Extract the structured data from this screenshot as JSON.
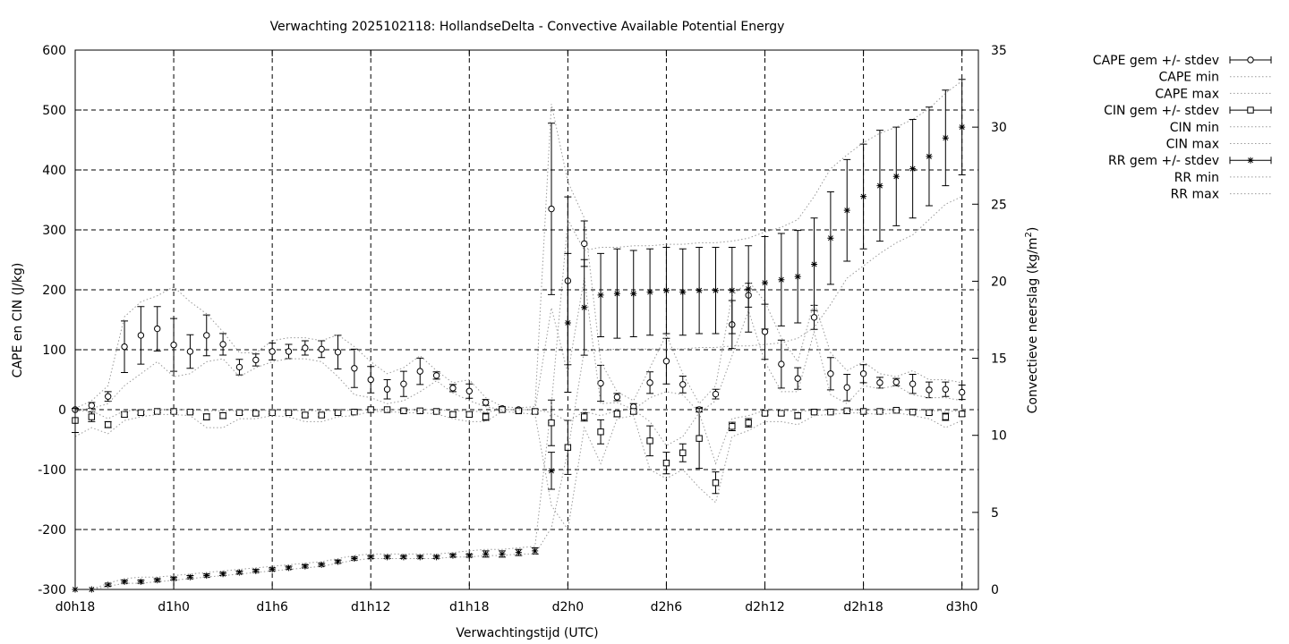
{
  "chart_data": {
    "type": "line",
    "title": "Verwachting 2025102118: HollandseDelta - Convective Available Potential Energy",
    "xlabel": "Verwachtingstijd (UTC)",
    "ylabel_left": "CAPE en CIN (J/kg)",
    "ylabel_right": "Convectieve neerslag (kg/m2)",
    "ylabel_right_prefix": "Convectieve neerslag (kg/m",
    "ylabel_right_sup": "2",
    "ylabel_right_suffix": ")",
    "xlim": [
      18,
      73
    ],
    "ylim_left": [
      -300,
      600
    ],
    "ylim_right": [
      0,
      35
    ],
    "grid": true,
    "legend_position": "top-right outside",
    "x_ticks": [
      {
        "x": 18,
        "label": "d0h18"
      },
      {
        "x": 24,
        "label": "d1h0"
      },
      {
        "x": 30,
        "label": "d1h6"
      },
      {
        "x": 36,
        "label": "d1h12"
      },
      {
        "x": 42,
        "label": "d1h18"
      },
      {
        "x": 48,
        "label": "d2h0"
      },
      {
        "x": 54,
        "label": "d2h6"
      },
      {
        "x": 60,
        "label": "d2h12"
      },
      {
        "x": 66,
        "label": "d2h18"
      },
      {
        "x": 72,
        "label": "d3h0"
      }
    ],
    "y_ticks_left": [
      -300,
      -200,
      -100,
      0,
      100,
      200,
      300,
      400,
      500,
      600
    ],
    "y_ticks_right": [
      0,
      5,
      10,
      15,
      20,
      25,
      30,
      35
    ],
    "x": [
      18,
      19,
      20,
      21,
      22,
      23,
      24,
      25,
      26,
      27,
      28,
      29,
      30,
      31,
      32,
      33,
      34,
      35,
      36,
      37,
      38,
      39,
      40,
      41,
      42,
      43,
      44,
      45,
      46,
      47,
      48,
      49,
      50,
      51,
      52,
      53,
      54,
      55,
      56,
      57,
      58,
      59,
      60,
      61,
      62,
      63,
      64,
      65,
      66,
      67,
      68,
      69,
      70,
      71,
      72
    ],
    "series": [
      {
        "name": "CAPE gem +/- stdev",
        "axis": "left",
        "marker": "circle",
        "style": "errorbars",
        "values": [
          0,
          7,
          22,
          105,
          124,
          135,
          108,
          97,
          124,
          109,
          71,
          83,
          97,
          97,
          103,
          101,
          96,
          69,
          50,
          34,
          43,
          64,
          57,
          36,
          31,
          12,
          2,
          0,
          null,
          335,
          215,
          277,
          44,
          21,
          5,
          45,
          81,
          42,
          0,
          26,
          142,
          191,
          130,
          76,
          52,
          154,
          60,
          37,
          60,
          45,
          46,
          43,
          33,
          34,
          29
        ],
        "err": [
          0,
          5,
          8,
          43,
          48,
          37,
          44,
          28,
          34,
          18,
          13,
          10,
          14,
          12,
          12,
          14,
          28,
          32,
          22,
          16,
          21,
          22,
          6,
          6,
          12,
          5,
          3,
          2,
          null,
          143,
          140,
          38,
          30,
          6,
          5,
          18,
          38,
          14,
          4,
          8,
          40,
          20,
          46,
          40,
          18,
          20,
          27,
          22,
          15,
          9,
          6,
          16,
          13,
          12,
          12
        ]
      },
      {
        "name": "CAPE min",
        "axis": "left",
        "style": "dotted",
        "values": [
          0,
          2,
          10,
          40,
          60,
          80,
          55,
          60,
          80,
          85,
          55,
          70,
          80,
          85,
          85,
          80,
          55,
          25,
          20,
          10,
          15,
          30,
          48,
          28,
          15,
          5,
          0,
          0,
          0,
          170,
          60,
          220,
          10,
          12,
          0,
          20,
          30,
          25,
          -5,
          15,
          90,
          165,
          80,
          30,
          30,
          130,
          25,
          10,
          40,
          35,
          40,
          25,
          20,
          20,
          15
        ]
      },
      {
        "name": "CAPE max",
        "axis": "left",
        "style": "dotted",
        "values": [
          2,
          15,
          40,
          155,
          180,
          190,
          205,
          180,
          160,
          130,
          95,
          95,
          115,
          120,
          120,
          115,
          125,
          105,
          80,
          60,
          70,
          90,
          65,
          45,
          50,
          20,
          5,
          3,
          5,
          510,
          380,
          320,
          80,
          30,
          15,
          70,
          125,
          60,
          10,
          40,
          190,
          215,
          180,
          120,
          80,
          180,
          95,
          65,
          80,
          60,
          55,
          65,
          50,
          50,
          45
        ]
      },
      {
        "name": "CIN gem +/- stdev",
        "axis": "left",
        "marker": "square",
        "style": "errorbars",
        "values": [
          -18,
          -12,
          -25,
          -8,
          -5,
          -3,
          -3,
          -4,
          -12,
          -10,
          -5,
          -6,
          -5,
          -5,
          -9,
          -9,
          -5,
          -4,
          0,
          0,
          -2,
          -2,
          -3,
          -8,
          -8,
          -12,
          0,
          -2,
          -3,
          -22,
          -63,
          -12,
          -37,
          -7,
          -3,
          -52,
          -89,
          -72,
          -48,
          -122,
          -28,
          -22,
          -6,
          -6,
          -10,
          -4,
          -4,
          -2,
          -3,
          -3,
          -1,
          -4,
          -5,
          -12,
          -7
        ],
        "err": [
          20,
          8,
          5,
          4,
          3,
          2,
          2,
          2,
          5,
          5,
          3,
          3,
          2,
          2,
          3,
          3,
          2,
          2,
          1,
          1,
          1,
          1,
          2,
          4,
          4,
          6,
          2,
          2,
          3,
          38,
          45,
          7,
          20,
          5,
          4,
          25,
          18,
          15,
          50,
          18,
          7,
          7,
          3,
          3,
          5,
          2,
          2,
          2,
          2,
          2,
          1,
          2,
          3,
          6,
          4
        ]
      },
      {
        "name": "CIN min",
        "axis": "left",
        "style": "dotted",
        "values": [
          -45,
          -30,
          -40,
          -18,
          -12,
          -8,
          -8,
          -10,
          -30,
          -30,
          -15,
          -15,
          -10,
          -12,
          -20,
          -20,
          -12,
          -10,
          -3,
          -3,
          -5,
          -5,
          -7,
          -15,
          -20,
          -20,
          -3,
          -5,
          -8,
          -160,
          -200,
          -30,
          -90,
          -15,
          -10,
          -100,
          -115,
          -100,
          -130,
          -155,
          -45,
          -35,
          -20,
          -20,
          -25,
          -10,
          -8,
          -5,
          -6,
          -8,
          -5,
          -10,
          -15,
          -30,
          -18
        ]
      },
      {
        "name": "CIN max",
        "axis": "left",
        "style": "dotted",
        "values": [
          -2,
          -2,
          -15,
          -2,
          -1,
          0,
          0,
          0,
          -2,
          -2,
          -1,
          -1,
          -1,
          -1,
          -2,
          -2,
          -1,
          -1,
          0,
          0,
          0,
          0,
          0,
          -2,
          -2,
          -4,
          0,
          0,
          0,
          -5,
          -20,
          -3,
          -10,
          -2,
          0,
          -20,
          -60,
          -45,
          -5,
          -90,
          -15,
          -10,
          -1,
          -1,
          -3,
          -1,
          -1,
          0,
          0,
          0,
          0,
          -1,
          -1,
          -3,
          -2
        ]
      },
      {
        "name": "RR gem +/- stdev",
        "axis": "right",
        "marker": "star",
        "style": "errorbars",
        "values": [
          0.0,
          0.0,
          0.3,
          0.5,
          0.5,
          0.6,
          0.7,
          0.8,
          0.9,
          1.0,
          1.1,
          1.2,
          1.3,
          1.4,
          1.5,
          1.6,
          1.8,
          2.0,
          2.1,
          2.1,
          2.1,
          2.1,
          2.1,
          2.2,
          2.2,
          2.3,
          2.3,
          2.4,
          2.5,
          7.7,
          17.3,
          18.3,
          19.1,
          19.2,
          19.2,
          19.3,
          19.4,
          19.3,
          19.4,
          19.4,
          19.4,
          19.5,
          19.9,
          20.1,
          20.3,
          21.1,
          22.8,
          24.6,
          25.5,
          26.2,
          26.8,
          27.3,
          28.1,
          29.3,
          30.0
        ],
        "err": [
          0,
          0,
          0.1,
          0.1,
          0.1,
          0.1,
          0.1,
          0.1,
          0.1,
          0.1,
          0.1,
          0.1,
          0.1,
          0.1,
          0.1,
          0.1,
          0.1,
          0.1,
          0.1,
          0.1,
          0.1,
          0.1,
          0.1,
          0.1,
          0.1,
          0.2,
          0.2,
          0.2,
          0.2,
          1.2,
          4.5,
          3.1,
          2.7,
          2.9,
          2.8,
          2.8,
          2.8,
          2.8,
          2.8,
          2.8,
          2.8,
          2.8,
          3.0,
          3.0,
          3.0,
          3.0,
          3.0,
          3.3,
          3.4,
          3.6,
          3.2,
          3.2,
          3.2,
          3.1,
          3.1
        ]
      },
      {
        "name": "RR min",
        "axis": "right",
        "style": "dotted",
        "values": [
          0,
          0,
          0.2,
          0.4,
          0.4,
          0.5,
          0.6,
          0.7,
          0.8,
          0.9,
          1.0,
          1.1,
          1.2,
          1.3,
          1.4,
          1.5,
          1.7,
          1.9,
          2.0,
          2.0,
          2.0,
          2.0,
          2.0,
          2.1,
          2.1,
          2.2,
          2.2,
          2.3,
          2.3,
          4.0,
          9.0,
          15.5,
          15.5,
          15.6,
          15.6,
          15.6,
          15.6,
          15.6,
          15.7,
          15.7,
          15.8,
          15.8,
          15.9,
          16.0,
          16.3,
          17.0,
          18.5,
          20.2,
          21.0,
          21.8,
          22.5,
          23.0,
          24.0,
          25.0,
          25.5
        ]
      },
      {
        "name": "RR max",
        "axis": "right",
        "style": "dotted",
        "values": [
          0,
          0,
          0.4,
          0.7,
          0.8,
          0.8,
          0.9,
          1.0,
          1.1,
          1.2,
          1.3,
          1.4,
          1.5,
          1.6,
          1.7,
          1.8,
          2.0,
          2.2,
          2.3,
          2.3,
          2.3,
          2.3,
          2.3,
          2.4,
          2.5,
          2.6,
          2.6,
          2.7,
          2.8,
          12.0,
          24.0,
          22.0,
          22.2,
          22.2,
          22.3,
          22.3,
          22.4,
          22.4,
          22.5,
          22.5,
          22.6,
          22.8,
          23.2,
          23.5,
          24.0,
          25.5,
          27.3,
          28.2,
          29.0,
          29.6,
          30.0,
          30.5,
          31.2,
          32.2,
          33.0
        ]
      }
    ]
  }
}
